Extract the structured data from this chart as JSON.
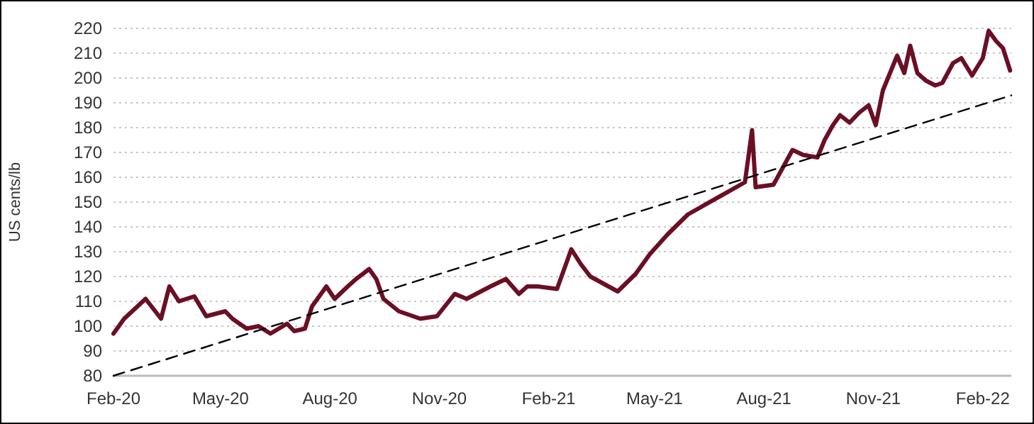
{
  "chart_data": {
    "type": "line",
    "ylabel": "US cents/lb",
    "xlim": [
      "2020-02-01",
      "2022-02-25"
    ],
    "ylim": [
      80,
      220
    ],
    "yticks": [
      80,
      90,
      100,
      110,
      120,
      130,
      140,
      150,
      160,
      170,
      180,
      190,
      200,
      210,
      220
    ],
    "xticks": [
      {
        "value": "2020-02-01",
        "label": "Feb-20"
      },
      {
        "value": "2020-05-01",
        "label": "May-20"
      },
      {
        "value": "2020-08-01",
        "label": "Aug-20"
      },
      {
        "value": "2020-11-01",
        "label": "Nov-20"
      },
      {
        "value": "2021-02-01",
        "label": "Feb-21"
      },
      {
        "value": "2021-05-01",
        "label": "May-21"
      },
      {
        "value": "2021-08-01",
        "label": "Aug-21"
      },
      {
        "value": "2021-11-01",
        "label": "Nov-21"
      },
      {
        "value": "2022-02-01",
        "label": "Feb-22"
      }
    ],
    "grid": "y",
    "marker": "none",
    "series": [
      {
        "color": "#6b0f24",
        "line_style": "solid",
        "x": [
          "2020-02-01",
          "2020-02-10",
          "2020-02-28",
          "2020-03-12",
          "2020-03-19",
          "2020-03-27",
          "2020-04-09",
          "2020-04-19",
          "2020-05-05",
          "2020-05-11",
          "2020-05-23",
          "2020-06-02",
          "2020-06-12",
          "2020-06-26",
          "2020-07-02",
          "2020-07-11",
          "2020-07-17",
          "2020-07-29",
          "2020-08-05",
          "2020-08-16",
          "2020-08-23",
          "2020-09-03",
          "2020-09-09",
          "2020-09-15",
          "2020-09-28",
          "2020-10-16",
          "2020-10-30",
          "2020-11-14",
          "2020-11-24",
          "2020-12-14",
          "2020-12-27",
          "2021-01-07",
          "2021-01-14",
          "2021-01-23",
          "2021-02-08",
          "2021-02-20",
          "2021-02-28",
          "2021-03-08",
          "2021-03-31",
          "2021-04-15",
          "2021-04-27",
          "2021-05-12",
          "2021-05-29",
          "2021-07-16",
          "2021-07-22",
          "2021-07-25",
          "2021-08-09",
          "2021-08-25",
          "2021-09-03",
          "2021-09-15",
          "2021-09-21",
          "2021-09-28",
          "2021-10-04",
          "2021-10-12",
          "2021-10-20",
          "2021-10-28",
          "2021-11-03",
          "2021-11-09",
          "2021-11-15",
          "2021-11-21",
          "2021-11-27",
          "2021-12-02",
          "2021-12-08",
          "2021-12-15",
          "2021-12-23",
          "2021-12-29",
          "2022-01-07",
          "2022-01-14",
          "2022-01-23",
          "2022-02-01",
          "2022-02-06",
          "2022-02-12",
          "2022-02-18",
          "2022-02-24"
        ],
        "values": [
          97,
          103,
          111,
          103,
          116,
          110,
          112,
          104,
          106,
          103,
          99,
          100,
          97,
          101,
          98,
          99,
          108,
          116,
          111,
          116,
          119,
          123,
          119,
          111,
          106,
          103,
          104,
          113,
          111,
          116,
          119,
          113,
          116,
          116,
          115,
          131,
          125,
          120,
          114,
          121,
          129,
          137,
          145,
          158,
          179,
          156,
          157,
          171,
          169,
          168,
          175,
          181,
          185,
          182,
          186,
          189,
          181,
          195,
          202,
          209,
          202,
          213,
          202,
          199,
          197,
          198,
          206,
          208,
          201,
          208,
          219,
          215,
          212,
          203
        ]
      },
      {
        "color": "#000000",
        "line_style": "dashed",
        "x": [
          "2020-02-01",
          "2022-02-25"
        ],
        "values": [
          80,
          193
        ]
      }
    ]
  }
}
